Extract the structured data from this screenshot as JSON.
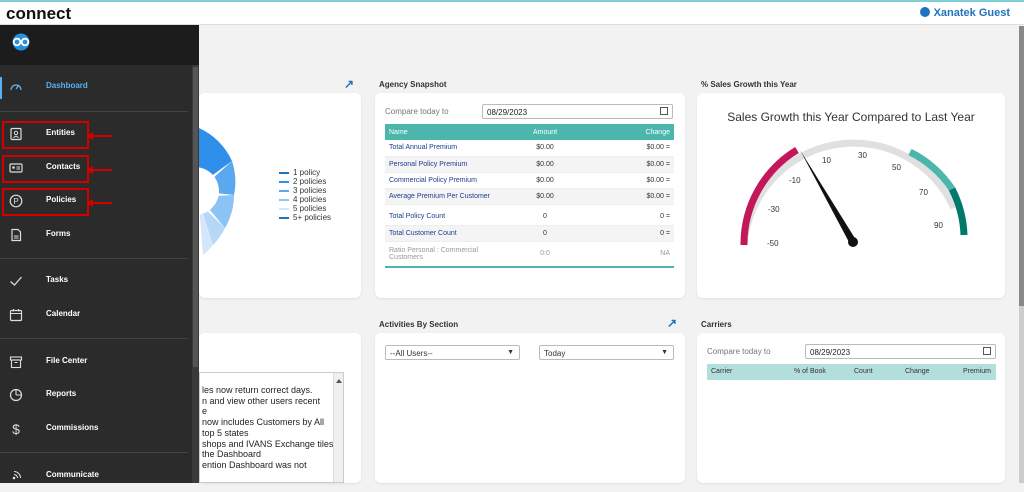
{
  "header": {
    "brand": "connect",
    "user": "Xanatek Guest"
  },
  "sidebar": {
    "items": [
      {
        "label": "Dashboard",
        "icon": "gauge-icon"
      },
      {
        "label": "Entities",
        "icon": "id-card-icon"
      },
      {
        "label": "Contacts",
        "icon": "contact-card-icon"
      },
      {
        "label": "Policies",
        "icon": "policy-p-icon"
      },
      {
        "label": "Forms",
        "icon": "form-icon"
      },
      {
        "label": "Tasks",
        "icon": "check-icon"
      },
      {
        "label": "Calendar",
        "icon": "calendar-icon"
      },
      {
        "label": "File Center",
        "icon": "archive-icon"
      },
      {
        "label": "Reports",
        "icon": "pie-chart-icon"
      },
      {
        "label": "Commissions",
        "icon": "dollar-icon"
      },
      {
        "label": "Communicate",
        "icon": "broadcast-icon"
      }
    ],
    "highlight_color": "#d40000",
    "active_color": "#5ab0f0"
  },
  "policy_legend": [
    "1 policy",
    "2 policies",
    "3 policies",
    "4 policies",
    "5 policies",
    "5+ policies"
  ],
  "agency_snapshot": {
    "title": "Agency Snapshot",
    "compare_label": "Compare today to",
    "date": "08/29/2023",
    "columns": [
      "Name",
      "Amount",
      "Change"
    ],
    "rows": [
      {
        "name": "Total Annual Premium",
        "amount": "$0.00",
        "change": "$0.00 ="
      },
      {
        "name": "Personal Policy Premium",
        "amount": "$0.00",
        "change": "$0.00 ="
      },
      {
        "name": "Commercial Policy Premium",
        "amount": "$0.00",
        "change": "$0.00 ="
      },
      {
        "name": "Average Premium Per Customer",
        "amount": "$0.00",
        "change": "$0.00 ="
      },
      {
        "name": "Total Policy Count",
        "amount": "0",
        "change": "0 ="
      },
      {
        "name": "Total Customer Count",
        "amount": "0",
        "change": "0 ="
      },
      {
        "name": "Ratio Personal : Commercial Customers",
        "amount": "0:0",
        "change": "NA"
      }
    ]
  },
  "sales_growth": {
    "section_title": "% Sales Growth this Year",
    "chart_title": "Sales Growth this Year Compared to Last Year",
    "ticks": [
      "-50",
      "-30",
      "-10",
      "10",
      "30",
      "50",
      "70",
      "90"
    ]
  },
  "activities": {
    "title": "Activities By Section",
    "users": "--All Users--",
    "period": "Today"
  },
  "carriers": {
    "title": "Carriers",
    "compare_label": "Compare today to",
    "date": "08/29/2023",
    "columns": [
      "Carrier",
      "% of Book",
      "Count",
      "Change",
      "Premium"
    ]
  },
  "notes": [
    "les now return correct days.",
    "n and view other users recent",
    "e",
    "now includes Customers by All",
    "top 5 states",
    "shops and IVANS Exchange tiles",
    "the Dashboard",
    "ention Dashboard was not"
  ]
}
